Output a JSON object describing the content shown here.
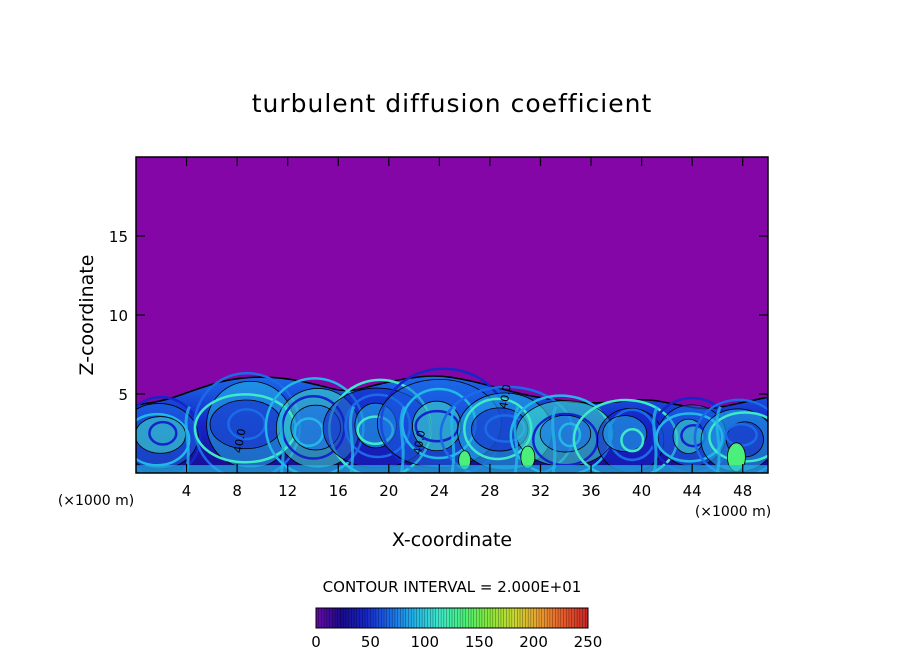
{
  "chart_data": {
    "type": "heatmap",
    "title": "turbulent diffusion coefficient",
    "xlabel": "X-coordinate",
    "ylabel": "Z-coordinate",
    "x_unit": "(×1000 m)",
    "x_unit_right": "(×1000 m)",
    "xlim": [
      0,
      50
    ],
    "ylim": [
      0,
      20
    ],
    "xticks": [
      4,
      8,
      12,
      16,
      20,
      24,
      28,
      32,
      36,
      40,
      44,
      48
    ],
    "yticks": [
      5,
      10,
      15
    ],
    "contour_interval_text": "CONTOUR INTERVAL = 2.000E+01",
    "contour_interval": 20,
    "contour_labels": [
      {
        "text": "40.0",
        "x": 8.5,
        "z": 2.0
      },
      {
        "text": "40.0",
        "x": 22.7,
        "z": 1.9
      },
      {
        "text": "40.0",
        "x": 29.5,
        "z": 4.8
      }
    ],
    "colorbar": {
      "min": 0,
      "max": 250,
      "ticks": [
        0,
        50,
        100,
        150,
        200,
        250
      ],
      "colors": [
        "#6a0aa8",
        "#1a0a8c",
        "#1525c8",
        "#1b6be8",
        "#23b7e8",
        "#3fe8c8",
        "#4af07a",
        "#86e83a",
        "#c8d830",
        "#e8a030",
        "#e85a2a",
        "#c82828"
      ]
    },
    "background_value": 0,
    "background_color": "#8406a6",
    "turbulent_layer_top_z": [
      4.3,
      4.6,
      5.3,
      5.9,
      6.1,
      6.0,
      5.6,
      5.1,
      5.6,
      6.0,
      6.2,
      5.9,
      5.4,
      4.9,
      4.6,
      4.4,
      4.5,
      4.7,
      4.3,
      4.0,
      4.4,
      4.8
    ]
  }
}
